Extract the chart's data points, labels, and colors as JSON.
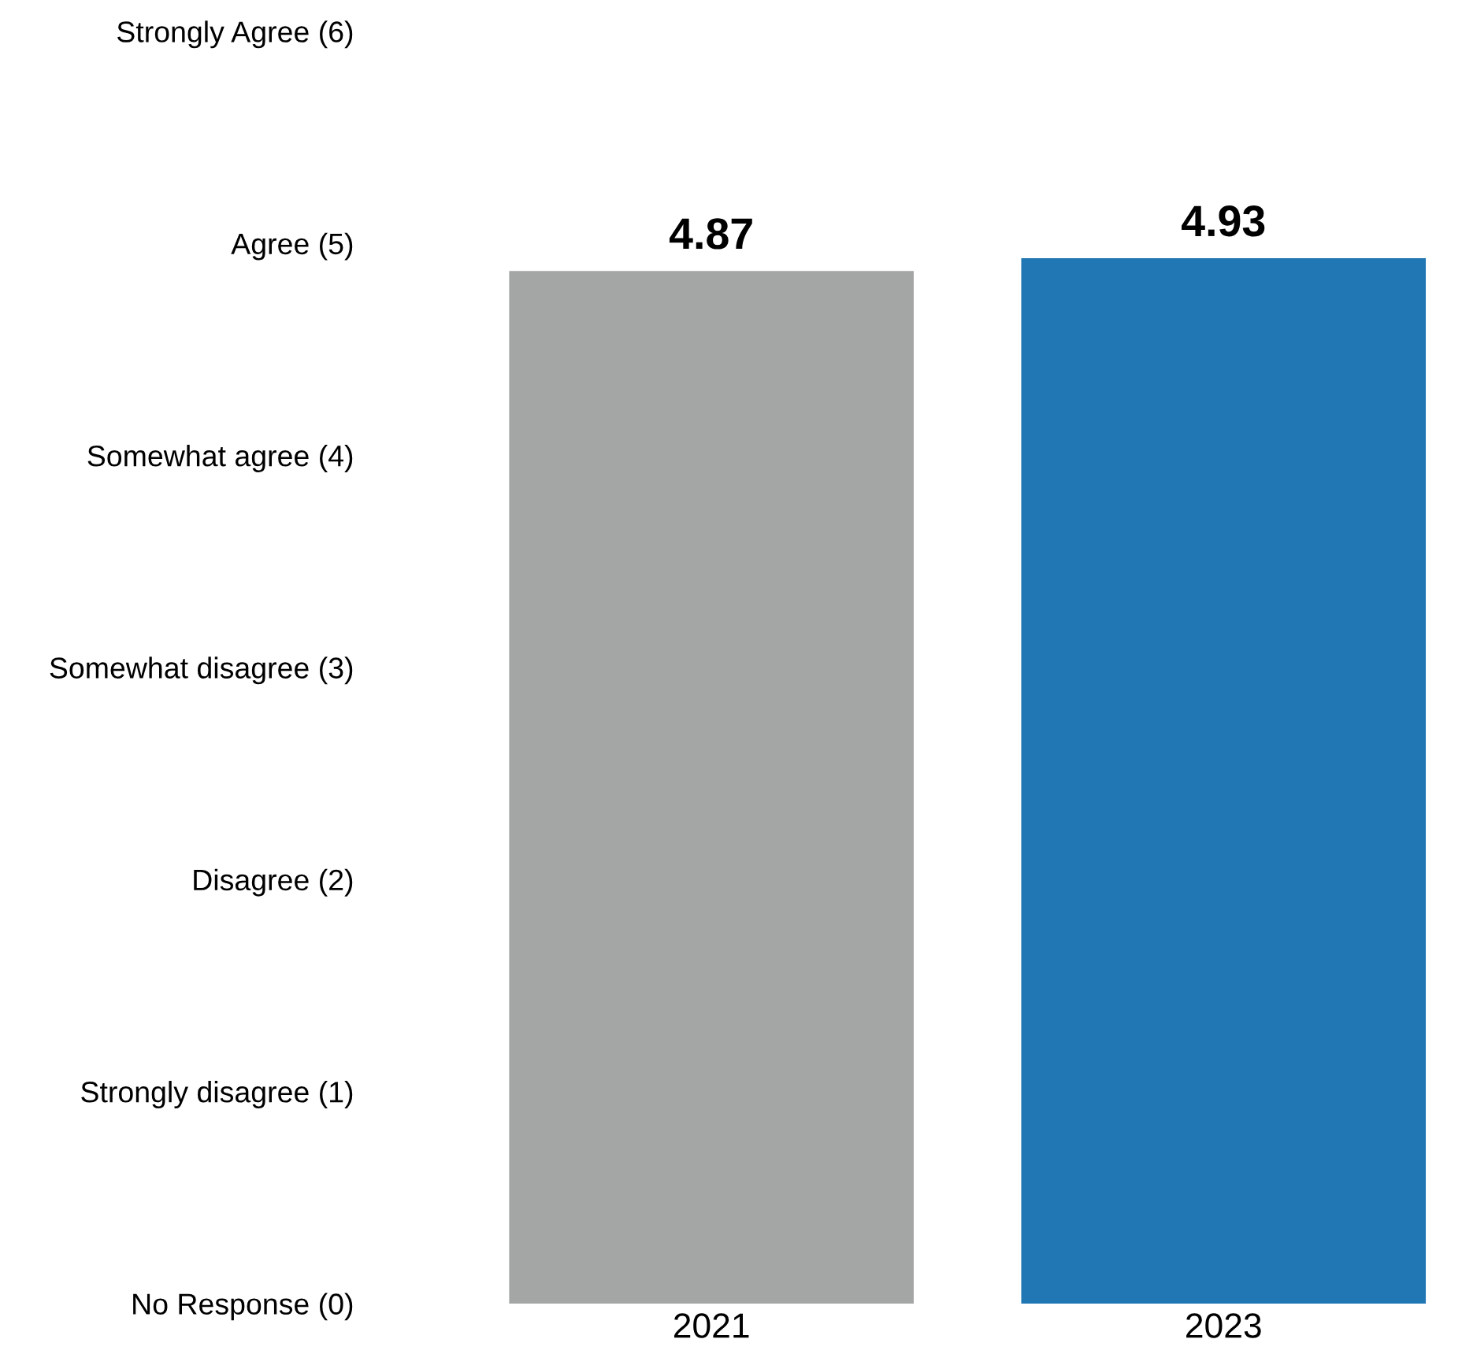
{
  "chart_data": {
    "type": "bar",
    "categories": [
      "2021",
      "2023"
    ],
    "values": [
      4.87,
      4.93
    ],
    "colors": [
      "#a4a5a5",
      "#2077b4"
    ],
    "ylim": [
      0,
      6
    ],
    "yticks": [
      {
        "value": 0,
        "label": "No Response (0)"
      },
      {
        "value": 1,
        "label": "Strongly disagree (1)"
      },
      {
        "value": 2,
        "label": "Disagree (2)"
      },
      {
        "value": 3,
        "label": "Somewhat disagree (3)"
      },
      {
        "value": 4,
        "label": "Somewhat agree (4)"
      },
      {
        "value": 5,
        "label": "Agree (5)"
      },
      {
        "value": 6,
        "label": "Strongly Agree (6)"
      }
    ],
    "data_labels": true,
    "grid": false,
    "legend": false
  }
}
